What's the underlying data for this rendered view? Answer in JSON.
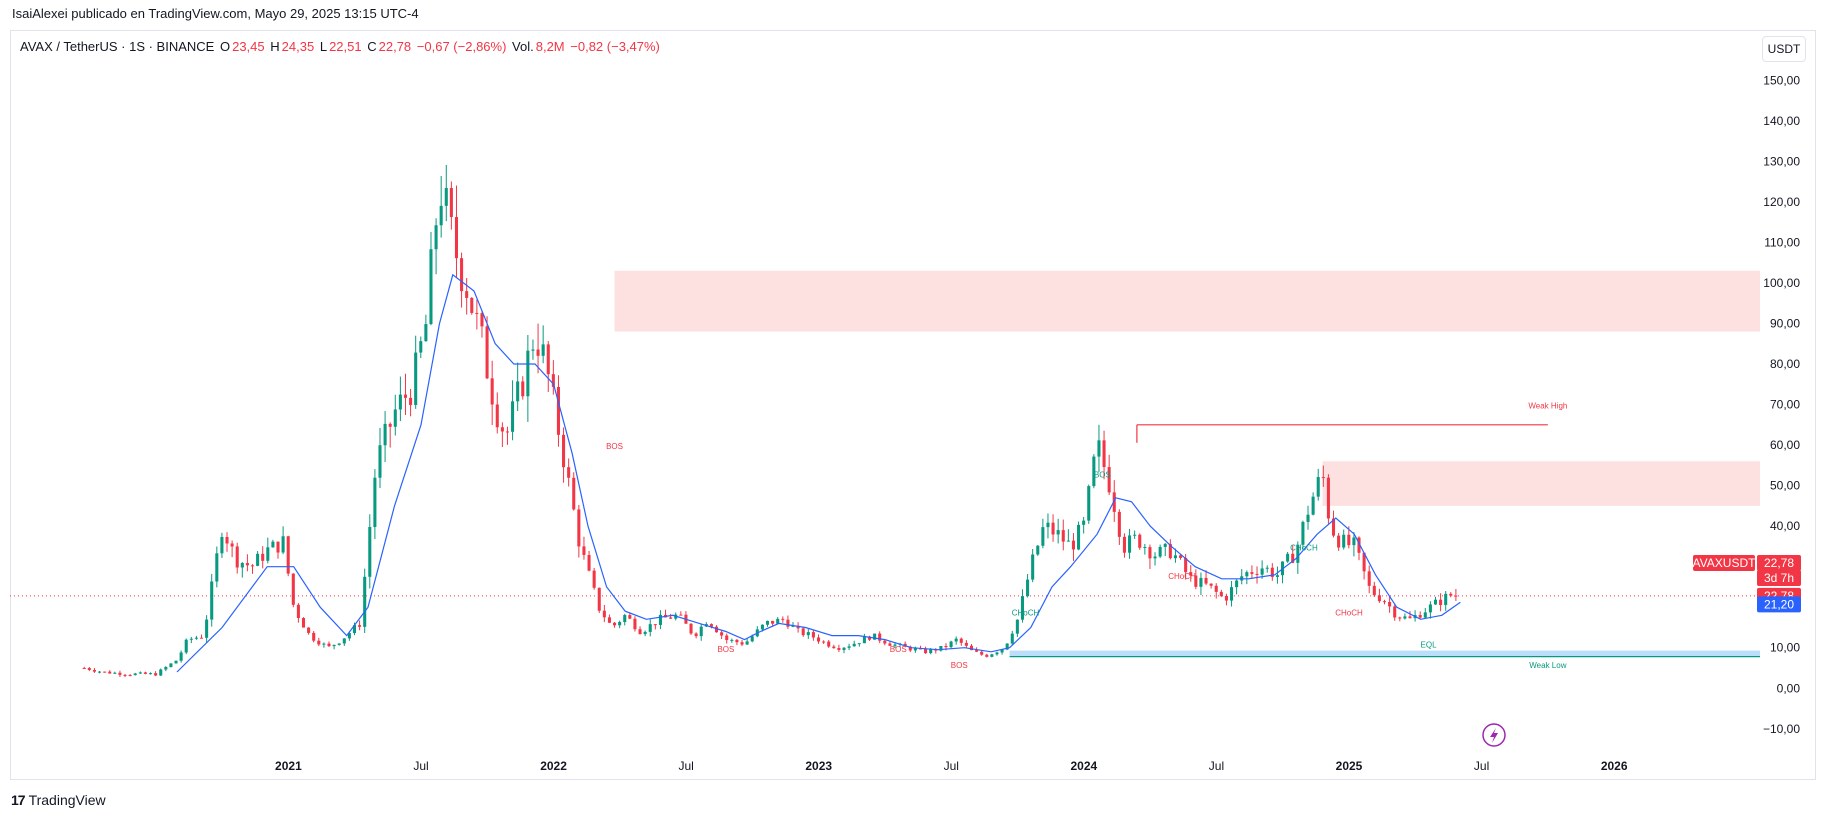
{
  "caption": "IsaiAlexei publicado en TradingView.com, Mayo 29, 2025 13:15 UTC-4",
  "legend": {
    "symbol": "AVAX / TetherUS · 1S · BINANCE",
    "o_label": "O",
    "o_value": "23,45",
    "h_label": "H",
    "h_value": "24,35",
    "l_label": "L",
    "l_value": "22,51",
    "c_label": "C",
    "c_value": "22,78",
    "change": "−0,67 (−2,86%)",
    "vol_label": "Vol.",
    "vol_value": "8,2M",
    "vol_change": "−0,82 (−3,47%)"
  },
  "currency_button": "USDT",
  "brand": "TradingView",
  "colors": {
    "up": "#089981",
    "down": "#f23645",
    "ma": "#2962ff",
    "zone": "#fde0e0",
    "weak_low": "#bbdefb",
    "text": "#131722"
  },
  "chart_data": {
    "type": "candlestick",
    "symbol": "AVAXUSDT",
    "interval": "1W",
    "ylim": [
      -14,
      155
    ],
    "yticks": [
      "−10,00",
      "0,00",
      "10,00",
      "40,00",
      "50,00",
      "60,00",
      "70,00",
      "80,00",
      "90,00",
      "100,00",
      "110,00",
      "120,00",
      "130,00",
      "140,00",
      "150,00"
    ],
    "ytick_values": [
      -10,
      0,
      10,
      40,
      50,
      60,
      70,
      80,
      90,
      100,
      110,
      120,
      130,
      140,
      150
    ],
    "xticks": [
      "2021",
      "Jul",
      "2022",
      "Jul",
      "2023",
      "Jul",
      "2024",
      "Jul",
      "2025",
      "Jul",
      "2026"
    ],
    "xtick_values": [
      2021.0,
      2021.5,
      2022.0,
      2022.5,
      2023.0,
      2023.5,
      2024.0,
      2024.5,
      2025.0,
      2025.5,
      2026.0
    ],
    "xlim": [
      2019.95,
      2026.55
    ],
    "close_path": [
      [
        2020.23,
        5
      ],
      [
        2020.3,
        4
      ],
      [
        2020.4,
        3.5
      ],
      [
        2020.5,
        3.5
      ],
      [
        2020.58,
        7
      ],
      [
        2020.62,
        12
      ],
      [
        2020.68,
        13
      ],
      [
        2020.75,
        40
      ],
      [
        2020.8,
        32
      ],
      [
        2020.86,
        30
      ],
      [
        2020.92,
        34
      ],
      [
        2020.98,
        36
      ],
      [
        2021.02,
        20
      ],
      [
        2021.08,
        13
      ],
      [
        2021.15,
        10
      ],
      [
        2021.2,
        12
      ],
      [
        2021.27,
        16
      ],
      [
        2021.33,
        55
      ],
      [
        2021.4,
        68
      ],
      [
        2021.47,
        75
      ],
      [
        2021.52,
        90
      ],
      [
        2021.57,
        125
      ],
      [
        2021.62,
        110
      ],
      [
        2021.67,
        100
      ],
      [
        2021.73,
        85
      ],
      [
        2021.78,
        70
      ],
      [
        2021.82,
        62
      ],
      [
        2021.88,
        75
      ],
      [
        2021.93,
        88
      ],
      [
        2021.97,
        80
      ],
      [
        2022.03,
        60
      ],
      [
        2022.1,
        35
      ],
      [
        2022.17,
        20
      ],
      [
        2022.22,
        15
      ],
      [
        2022.27,
        18
      ],
      [
        2022.33,
        14
      ],
      [
        2022.4,
        17
      ],
      [
        2022.47,
        18
      ],
      [
        2022.53,
        13
      ],
      [
        2022.58,
        17
      ],
      [
        2022.65,
        12
      ],
      [
        2022.72,
        11
      ],
      [
        2022.8,
        16
      ],
      [
        2022.87,
        17
      ],
      [
        2022.92,
        14
      ],
      [
        2022.97,
        13
      ],
      [
        2023.03,
        11
      ],
      [
        2023.08,
        10
      ],
      [
        2023.13,
        11
      ],
      [
        2023.2,
        13
      ],
      [
        2023.27,
        11
      ],
      [
        2023.33,
        10
      ],
      [
        2023.4,
        9
      ],
      [
        2023.47,
        10
      ],
      [
        2023.52,
        12
      ],
      [
        2023.58,
        9
      ],
      [
        2023.63,
        8
      ],
      [
        2023.7,
        10
      ],
      [
        2023.75,
        17
      ],
      [
        2023.8,
        30
      ],
      [
        2023.85,
        40
      ],
      [
        2023.9,
        38
      ],
      [
        2023.95,
        35
      ],
      [
        2024.0,
        40
      ],
      [
        2024.05,
        60
      ],
      [
        2024.1,
        50
      ],
      [
        2024.15,
        35
      ],
      [
        2024.2,
        37
      ],
      [
        2024.27,
        33
      ],
      [
        2024.33,
        34
      ],
      [
        2024.4,
        27
      ],
      [
        2024.47,
        25
      ],
      [
        2024.53,
        22
      ],
      [
        2024.6,
        28
      ],
      [
        2024.67,
        30
      ],
      [
        2024.73,
        28
      ],
      [
        2024.8,
        34
      ],
      [
        2024.85,
        45
      ],
      [
        2024.9,
        53
      ],
      [
        2024.93,
        40
      ],
      [
        2024.97,
        36
      ],
      [
        2025.02,
        35
      ],
      [
        2025.08,
        24
      ],
      [
        2025.13,
        22
      ],
      [
        2025.18,
        18
      ],
      [
        2025.23,
        17
      ],
      [
        2025.28,
        19
      ],
      [
        2025.33,
        21
      ],
      [
        2025.38,
        23
      ],
      [
        2025.42,
        22.78
      ]
    ],
    "ma_path": [
      [
        2020.58,
        4
      ],
      [
        2020.75,
        15
      ],
      [
        2020.92,
        30
      ],
      [
        2021.02,
        30
      ],
      [
        2021.12,
        20
      ],
      [
        2021.22,
        13
      ],
      [
        2021.3,
        20
      ],
      [
        2021.4,
        45
      ],
      [
        2021.5,
        65
      ],
      [
        2021.57,
        90
      ],
      [
        2021.62,
        102
      ],
      [
        2021.7,
        98
      ],
      [
        2021.78,
        85
      ],
      [
        2021.85,
        80
      ],
      [
        2021.93,
        80
      ],
      [
        2022.0,
        75
      ],
      [
        2022.07,
        58
      ],
      [
        2022.13,
        40
      ],
      [
        2022.2,
        25
      ],
      [
        2022.27,
        19
      ],
      [
        2022.35,
        17
      ],
      [
        2022.45,
        18
      ],
      [
        2022.55,
        16
      ],
      [
        2022.65,
        14
      ],
      [
        2022.72,
        12
      ],
      [
        2022.78,
        14
      ],
      [
        2022.85,
        16
      ],
      [
        2022.95,
        15
      ],
      [
        2023.05,
        13
      ],
      [
        2023.15,
        13
      ],
      [
        2023.25,
        12
      ],
      [
        2023.35,
        10
      ],
      [
        2023.45,
        9.5
      ],
      [
        2023.55,
        10
      ],
      [
        2023.65,
        9
      ],
      [
        2023.72,
        10
      ],
      [
        2023.8,
        15
      ],
      [
        2023.88,
        25
      ],
      [
        2023.95,
        30
      ],
      [
        2024.05,
        38
      ],
      [
        2024.12,
        47
      ],
      [
        2024.18,
        46
      ],
      [
        2024.25,
        40
      ],
      [
        2024.33,
        35
      ],
      [
        2024.42,
        30
      ],
      [
        2024.52,
        27
      ],
      [
        2024.62,
        27
      ],
      [
        2024.72,
        28
      ],
      [
        2024.8,
        32
      ],
      [
        2024.88,
        38
      ],
      [
        2024.95,
        42
      ],
      [
        2025.02,
        38
      ],
      [
        2025.1,
        28
      ],
      [
        2025.18,
        20
      ],
      [
        2025.27,
        17
      ],
      [
        2025.35,
        18
      ],
      [
        2025.42,
        21.2
      ]
    ],
    "zones": [
      {
        "from": 2022.23,
        "to": 2026.55,
        "low": 88,
        "high": 103
      },
      {
        "from": 2024.9,
        "to": 2026.55,
        "low": 45,
        "high": 56
      }
    ],
    "annotations": [
      {
        "text": "BOS",
        "x": 2022.23,
        "y": 59,
        "color": "down"
      },
      {
        "text": "BOS",
        "x": 2022.65,
        "y": 9,
        "color": "down"
      },
      {
        "text": "BOS",
        "x": 2023.3,
        "y": 9,
        "color": "down"
      },
      {
        "text": "BOS",
        "x": 2023.53,
        "y": 5,
        "color": "down"
      },
      {
        "text": "CHoCH",
        "x": 2023.78,
        "y": 18,
        "color": "up"
      },
      {
        "text": "BOS",
        "x": 2024.07,
        "y": 52,
        "color": "up"
      },
      {
        "text": "CHoCH",
        "x": 2024.37,
        "y": 27,
        "color": "down"
      },
      {
        "text": "CHoCH",
        "x": 2024.83,
        "y": 34,
        "color": "up"
      },
      {
        "text": "CHoCH",
        "x": 2025.0,
        "y": 18,
        "color": "down"
      },
      {
        "text": "EQL",
        "x": 2025.3,
        "y": 10,
        "color": "up"
      },
      {
        "text": "Weak High",
        "x": 2025.75,
        "y": 69,
        "color": "down"
      },
      {
        "text": "Weak Low",
        "x": 2025.75,
        "y": 5,
        "color": "up"
      }
    ],
    "weak_high_line": {
      "from": 2024.2,
      "to": 2025.75,
      "y": 65
    },
    "weak_low_line": {
      "from": 2023.72,
      "to": 2026.55,
      "y": 8.3
    },
    "last_price": 22.78,
    "ma_value": 21.2,
    "price_labels": {
      "symbol": "AVAXUSDT",
      "price": "22,78",
      "countdown": "3d 7h",
      "price2": "22,78",
      "ma": "21,20"
    }
  }
}
